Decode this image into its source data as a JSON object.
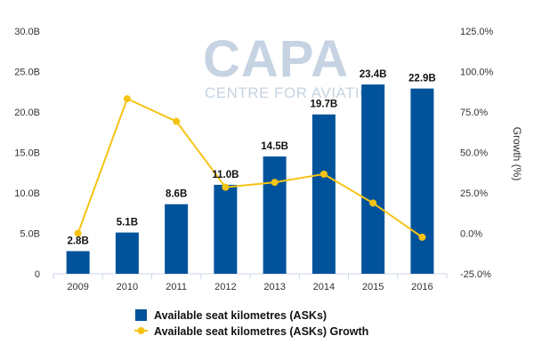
{
  "watermark": {
    "logo": "CAPA",
    "tagline": "CENTRE FOR AVIATION"
  },
  "chart_data": {
    "type": "bar",
    "categories": [
      "2009",
      "2010",
      "2011",
      "2012",
      "2013",
      "2014",
      "2015",
      "2016"
    ],
    "series": [
      {
        "name": "Available seat kilometres (ASKs)",
        "type": "bar",
        "axis": "left",
        "unit": "B",
        "color": "#00539b",
        "values": [
          2.8,
          5.1,
          8.6,
          11.0,
          14.5,
          19.7,
          23.4,
          22.9
        ],
        "labels": [
          "2.8B",
          "5.1B",
          "8.6B",
          "11.0B",
          "14.5B",
          "19.7B",
          "23.4B",
          "22.9B"
        ]
      },
      {
        "name": "Available seat kilometres (ASKs) Growth",
        "type": "line",
        "axis": "right",
        "unit": "%",
        "color": "#f5c314",
        "values": [
          0.0,
          83.2,
          69.2,
          28.5,
          31.5,
          36.6,
          18.7,
          -2.4
        ]
      }
    ],
    "y_left": {
      "ylim": [
        0,
        30
      ],
      "ticks": [
        0,
        5,
        10,
        15,
        20,
        25,
        30
      ],
      "tick_labels": [
        "0",
        "5.0B",
        "10.0B",
        "15.0B",
        "20.0B",
        "25.0B",
        "30.0B"
      ]
    },
    "y_right": {
      "label": "Growth (%)",
      "ylim": [
        -25,
        125
      ],
      "ticks": [
        -25,
        0,
        25,
        50,
        75,
        100,
        125
      ],
      "tick_labels": [
        "-25.0%",
        "0.0%",
        "25.0%",
        "50.0%",
        "75.0%",
        "100.0%",
        "125.0%"
      ]
    },
    "title": "",
    "xlabel": "",
    "grid": false,
    "legend_position": "bottom"
  }
}
